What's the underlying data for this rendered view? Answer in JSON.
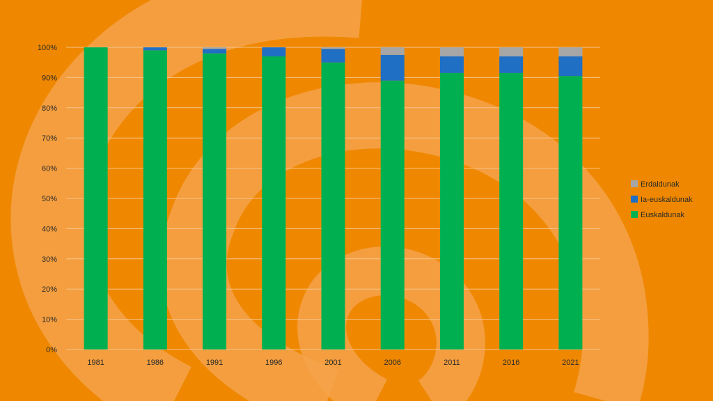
{
  "chart_data": {
    "type": "bar",
    "stacked": true,
    "normalized": true,
    "categories": [
      "1981",
      "1986",
      "1991",
      "1996",
      "2001",
      "2006",
      "2011",
      "2016",
      "2021"
    ],
    "series": [
      {
        "name": "Euskaldunak",
        "color": "#00b050",
        "values": [
          100,
          99,
          98,
          97,
          95,
          89,
          91.5,
          91.5,
          90.5
        ]
      },
      {
        "name": "Ia-euskaldunak",
        "color": "#1f6fc4",
        "values": [
          0,
          1,
          1.5,
          3,
          4.5,
          8.5,
          5.5,
          5.5,
          6.5
        ]
      },
      {
        "name": "Erdaldunak",
        "color": "#a6a6a6",
        "values": [
          0,
          0,
          0.5,
          0,
          0.5,
          2.5,
          3,
          3,
          3
        ]
      }
    ],
    "y_ticks": [
      "0%",
      "10%",
      "20%",
      "30%",
      "40%",
      "50%",
      "60%",
      "70%",
      "80%",
      "90%",
      "100%"
    ],
    "ylim": [
      0,
      100
    ],
    "grid": true,
    "legend": {
      "placement": "right",
      "order": [
        "Erdaldunak",
        "Ia-euskaldunak",
        "Euskaldunak"
      ]
    }
  },
  "background": {
    "color": "#ef8800",
    "swirl_color": "#f4a24a"
  }
}
